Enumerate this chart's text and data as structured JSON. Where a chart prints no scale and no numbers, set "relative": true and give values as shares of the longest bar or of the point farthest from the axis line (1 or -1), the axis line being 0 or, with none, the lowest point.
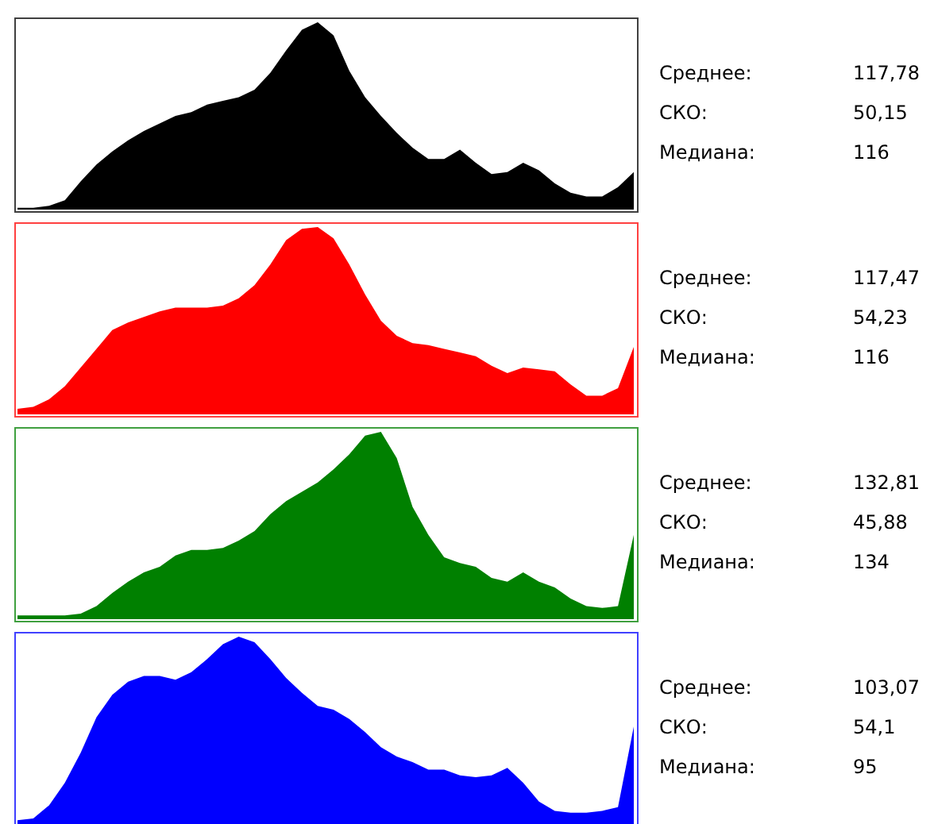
{
  "chart_data": [
    {
      "type": "area",
      "relative": true,
      "categories": [
        null,
        null,
        null,
        null,
        null,
        null,
        null,
        null,
        null,
        null,
        null,
        null,
        null,
        null,
        null,
        null,
        null,
        null,
        null,
        null,
        null,
        null,
        null,
        null,
        null,
        null,
        null,
        null,
        null,
        null,
        null,
        null,
        null,
        null,
        null,
        null,
        null,
        null,
        null,
        null
      ],
      "series": [
        {
          "color": "#000000",
          "values": [
            0.01,
            0.01,
            0.02,
            0.05,
            0.15,
            0.24,
            0.31,
            0.37,
            0.42,
            0.46,
            0.5,
            0.52,
            0.56,
            0.58,
            0.6,
            0.64,
            0.73,
            0.85,
            0.96,
            1.0,
            0.93,
            0.74,
            0.6,
            0.5,
            0.41,
            0.33,
            0.27,
            0.27,
            0.32,
            0.25,
            0.19,
            0.2,
            0.25,
            0.21,
            0.14,
            0.09,
            0.07,
            0.07,
            0.12,
            0.2
          ]
        }
      ],
      "annotations": [
        "Среднее:",
        "117,78",
        "СКО:",
        "50,15",
        "Медиана:",
        "116"
      ]
    },
    {
      "type": "area",
      "relative": true,
      "categories": [
        null,
        null,
        null,
        null,
        null,
        null,
        null,
        null,
        null,
        null,
        null,
        null,
        null,
        null,
        null,
        null,
        null,
        null,
        null,
        null,
        null,
        null,
        null,
        null,
        null,
        null,
        null,
        null,
        null,
        null,
        null,
        null,
        null,
        null,
        null,
        null,
        null,
        null,
        null,
        null
      ],
      "series": [
        {
          "color": "#ff0000",
          "values": [
            0.03,
            0.04,
            0.08,
            0.15,
            0.25,
            0.35,
            0.45,
            0.49,
            0.52,
            0.55,
            0.57,
            0.57,
            0.57,
            0.58,
            0.62,
            0.69,
            0.8,
            0.93,
            0.99,
            1.0,
            0.94,
            0.8,
            0.64,
            0.5,
            0.42,
            0.38,
            0.37,
            0.35,
            0.33,
            0.31,
            0.26,
            0.22,
            0.25,
            0.24,
            0.23,
            0.16,
            0.1,
            0.1,
            0.14,
            0.36
          ]
        }
      ],
      "annotations": [
        "Среднее:",
        "117,47",
        "СКО:",
        "54,23",
        "Медиана:",
        "116"
      ]
    },
    {
      "type": "area",
      "relative": true,
      "categories": [
        null,
        null,
        null,
        null,
        null,
        null,
        null,
        null,
        null,
        null,
        null,
        null,
        null,
        null,
        null,
        null,
        null,
        null,
        null,
        null,
        null,
        null,
        null,
        null,
        null,
        null,
        null,
        null,
        null,
        null,
        null,
        null,
        null,
        null,
        null,
        null,
        null,
        null,
        null,
        null
      ],
      "series": [
        {
          "color": "#008000",
          "values": [
            0.02,
            0.02,
            0.02,
            0.02,
            0.03,
            0.07,
            0.14,
            0.2,
            0.25,
            0.28,
            0.34,
            0.37,
            0.37,
            0.38,
            0.42,
            0.47,
            0.56,
            0.63,
            0.68,
            0.73,
            0.8,
            0.88,
            0.98,
            1.0,
            0.86,
            0.6,
            0.45,
            0.33,
            0.3,
            0.28,
            0.22,
            0.2,
            0.25,
            0.2,
            0.17,
            0.11,
            0.07,
            0.06,
            0.07,
            0.45
          ]
        }
      ],
      "annotations": [
        "Среднее:",
        "132,81",
        "СКО:",
        "45,88",
        "Медиана:",
        "134"
      ]
    },
    {
      "type": "area",
      "relative": true,
      "categories": [
        null,
        null,
        null,
        null,
        null,
        null,
        null,
        null,
        null,
        null,
        null,
        null,
        null,
        null,
        null,
        null,
        null,
        null,
        null,
        null,
        null,
        null,
        null,
        null,
        null,
        null,
        null,
        null,
        null,
        null,
        null,
        null,
        null,
        null,
        null,
        null,
        null,
        null,
        null,
        null
      ],
      "series": [
        {
          "color": "#0000ff",
          "values": [
            0.02,
            0.03,
            0.1,
            0.22,
            0.38,
            0.57,
            0.69,
            0.76,
            0.79,
            0.79,
            0.77,
            0.81,
            0.88,
            0.96,
            1.0,
            0.97,
            0.88,
            0.78,
            0.7,
            0.63,
            0.61,
            0.56,
            0.49,
            0.41,
            0.36,
            0.33,
            0.29,
            0.29,
            0.26,
            0.25,
            0.26,
            0.3,
            0.22,
            0.12,
            0.07,
            0.06,
            0.06,
            0.07,
            0.09,
            0.52
          ]
        }
      ],
      "annotations": [
        "Среднее:",
        "103,07",
        "СКО:",
        "54,1",
        "Медиана:",
        "95"
      ]
    }
  ]
}
